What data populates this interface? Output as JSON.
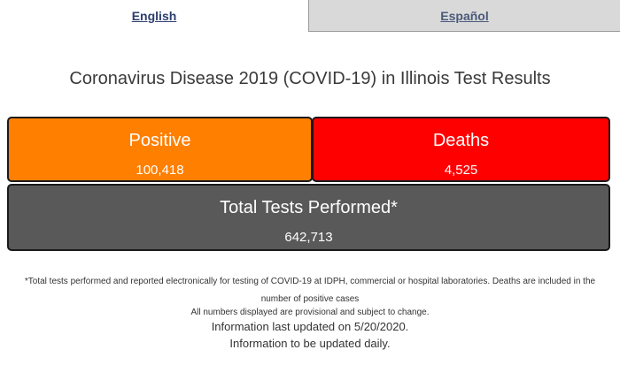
{
  "tabs": {
    "english": "English",
    "espanol": "Español"
  },
  "title": "Coronavirus Disease 2019 (COVID-19) in Illinois Test Results",
  "cards": {
    "positive": {
      "label": "Positive",
      "value": "100,418",
      "color": "#ff7f00"
    },
    "deaths": {
      "label": "Deaths",
      "value": "4,525",
      "color": "#ff0000"
    },
    "total": {
      "label": "Total Tests Performed*",
      "value": "642,713",
      "color": "#595959"
    }
  },
  "notes": {
    "footnote": "*Total tests performed and reported electronically for testing of COVID-19 at IDPH, commercial or hospital laboratories. Deaths are included in the number of positive cases",
    "provisional": "All numbers displayed are provisional and subject to change.",
    "updated": "Information last updated on 5/20/2020.",
    "daily": "Information to be updated daily."
  }
}
